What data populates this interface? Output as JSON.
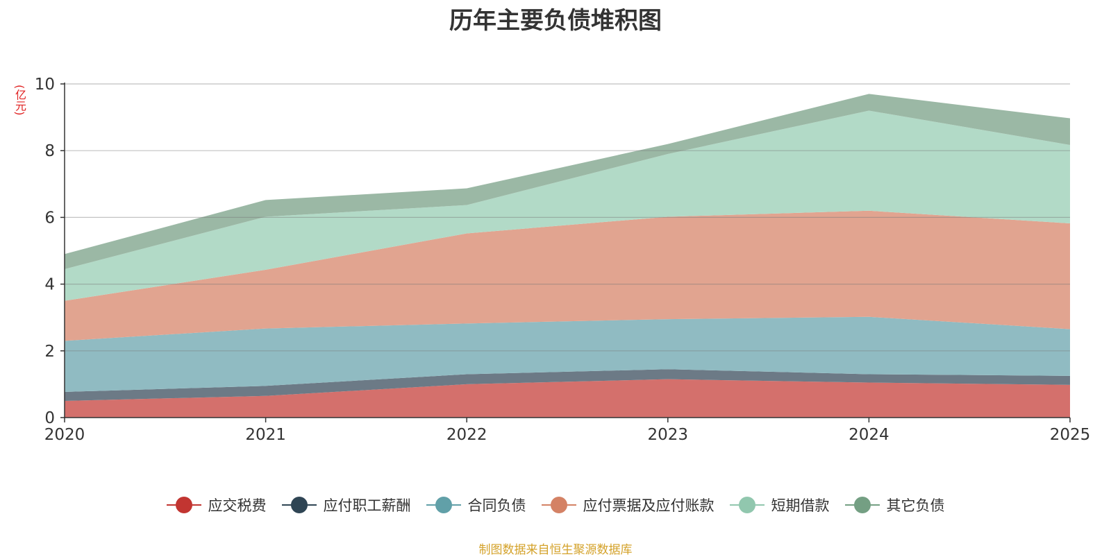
{
  "chart_data": {
    "type": "area",
    "stacked": true,
    "title": "历年主要负债堆积图",
    "ylabel": "(亿元)",
    "xlabel": "",
    "x": [
      "2020",
      "2021",
      "2022",
      "2023",
      "2024",
      "2025"
    ],
    "ylim": [
      0,
      10
    ],
    "yticks": [
      0,
      2,
      4,
      6,
      8,
      10
    ],
    "grid": true,
    "legend_position": "bottom",
    "series": [
      {
        "name": "应交税费",
        "color": "#c23531",
        "fill": "#d4706c",
        "values": [
          0.5,
          0.65,
          1.0,
          1.15,
          1.05,
          0.98
        ]
      },
      {
        "name": "应付职工薪酬",
        "color": "#2f4554",
        "fill": "#6c7a86",
        "values": [
          0.27,
          0.3,
          0.3,
          0.3,
          0.25,
          0.27
        ]
      },
      {
        "name": "合同负债",
        "color": "#61a0a8",
        "fill": "#90bbc2",
        "values": [
          1.53,
          1.72,
          1.52,
          1.5,
          1.72,
          1.4
        ]
      },
      {
        "name": "应付票据及应付账款",
        "color": "#d48265",
        "fill": "#e1a490",
        "values": [
          1.2,
          1.76,
          2.7,
          3.07,
          3.18,
          3.17
        ]
      },
      {
        "name": "短期借款",
        "color": "#91c7ae",
        "fill": "#b2dac7",
        "values": [
          0.95,
          1.59,
          0.85,
          1.88,
          3.0,
          2.35
        ]
      },
      {
        "name": "其它负债",
        "color": "#749f83",
        "fill": "#9bb8a5",
        "values": [
          0.45,
          0.5,
          0.5,
          0.3,
          0.5,
          0.8
        ]
      }
    ]
  },
  "source_note": "制图数据来自恒生聚源数据库"
}
